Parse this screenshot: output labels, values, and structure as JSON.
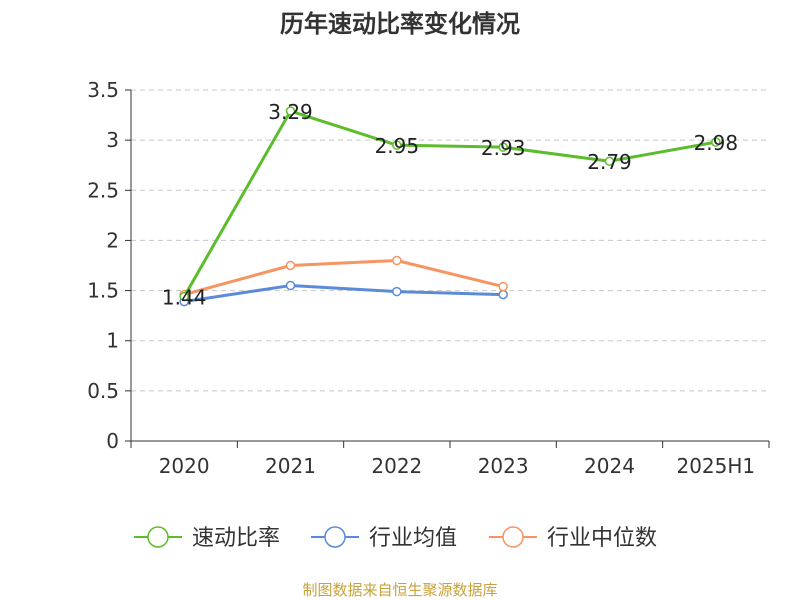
{
  "source_note": "制图数据来自恒生聚源数据库",
  "colors": {
    "series_main": "#5bbd2b",
    "series_avg": "#5b8ad8",
    "series_median": "#f59562",
    "source_note": "#c8a23a",
    "grid": "#c8c8c8",
    "axis": "#333333"
  },
  "chart_data": {
    "type": "line",
    "title": "历年速动比率变化情况",
    "xlabel": "",
    "ylabel": "",
    "categories": [
      "2020",
      "2021",
      "2022",
      "2023",
      "2024",
      "2025H1"
    ],
    "y_ticks": [
      "0",
      "0.5",
      "1",
      "1.5",
      "2",
      "2.5",
      "3",
      "3.5"
    ],
    "ylim": [
      0,
      3.5
    ],
    "grid": true,
    "legend_position": "bottom",
    "series": [
      {
        "name": "速动比率",
        "values": [
          1.44,
          3.29,
          2.95,
          2.93,
          2.79,
          2.98
        ],
        "labels": [
          "1.44",
          "3.29",
          "2.95",
          "2.93",
          "2.79",
          "2.98"
        ],
        "color": "#5bbd2b"
      },
      {
        "name": "行业均值",
        "values": [
          1.39,
          1.55,
          1.49,
          1.46,
          null,
          null
        ],
        "color": "#5b8ad8"
      },
      {
        "name": "行业中位数",
        "values": [
          1.46,
          1.75,
          1.8,
          1.54,
          null,
          null
        ],
        "color": "#f59562"
      }
    ]
  }
}
